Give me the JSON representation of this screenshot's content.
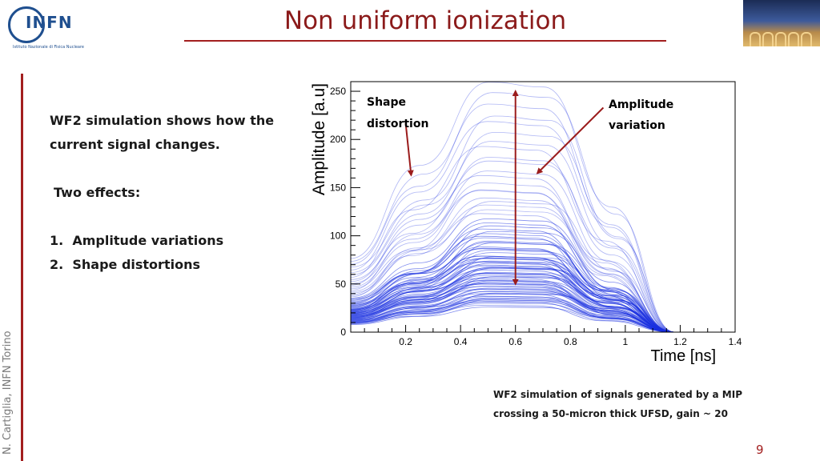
{
  "header": {
    "logo_text": "INFN",
    "logo_subtitle": "Istituto Nazionale di Fisica Nucleare",
    "title": "Non uniform ionization"
  },
  "side": {
    "author": "N. Cartiglia, INFN Torino"
  },
  "body": {
    "intro_line1": "WF2 simulation shows how the",
    "intro_line2": "current signal changes.",
    "effects_heading": "Two effects:",
    "items": [
      {
        "num": "1.",
        "text": "Amplitude variations"
      },
      {
        "num": "2.",
        "text": "Shape distortions"
      }
    ]
  },
  "annotations": {
    "shape_line1": "Shape",
    "shape_line2": "distortion",
    "amplitude_line1": "Amplitude",
    "amplitude_line2": "variation",
    "arrow_color": "#9b1c1c"
  },
  "chart_data": {
    "type": "line",
    "xlabel": "Time [ns]",
    "ylabel": "Amplitude [a.u]",
    "xlim": [
      0,
      1.4
    ],
    "ylim": [
      0,
      260
    ],
    "xticks": [
      0.2,
      0.4,
      0.6,
      0.8,
      1,
      1.2,
      1.4
    ],
    "xtick_labels": [
      "0.2",
      "0.4",
      "0.6",
      "0.8",
      "1",
      "1.2",
      "1.4"
    ],
    "yticks": [
      0,
      50,
      100,
      150,
      200,
      250
    ],
    "ytick_labels": [
      "0",
      "50",
      "100",
      "150",
      "200",
      "250"
    ],
    "series_color": "#1a2fe0",
    "grid": false,
    "waveform_shape": {
      "x": [
        0,
        0.25,
        0.5,
        0.7,
        0.95,
        1.18,
        1.4
      ],
      "y_fraction": [
        0.3,
        0.62,
        1.0,
        0.98,
        0.45,
        0.0,
        0.0
      ]
    },
    "peak_amplitudes": [
      26,
      28,
      30,
      31,
      32,
      33,
      34,
      35,
      36,
      37,
      38,
      39,
      40,
      41,
      42,
      43,
      44,
      45,
      46,
      47,
      48,
      49,
      50,
      51,
      52,
      53,
      54,
      55,
      56,
      57,
      58,
      59,
      60,
      61,
      62,
      63,
      64,
      65,
      66,
      67,
      68,
      69,
      70,
      71,
      72,
      73,
      74,
      75,
      76,
      77,
      78,
      79,
      80,
      82,
      84,
      86,
      88,
      90,
      92,
      94,
      96,
      98,
      100,
      103,
      106,
      109,
      112,
      115,
      118,
      122,
      126,
      130,
      135,
      140,
      145,
      150,
      156,
      162,
      168,
      175,
      182,
      190,
      198,
      206,
      215,
      225,
      235,
      245,
      255
    ],
    "arrows": [
      {
        "name": "amplitude-span",
        "from": [
          0.6,
          50
        ],
        "to": [
          0.6,
          250
        ]
      },
      {
        "name": "shape-pointer",
        "from": [
          0.2,
          217
        ],
        "to": [
          0.22,
          163
        ]
      },
      {
        "name": "amplitude-pointer",
        "from": [
          0.92,
          233
        ],
        "to": [
          0.68,
          165
        ]
      }
    ]
  },
  "caption": {
    "line1": "WF2 simulation of signals generated by a MIP",
    "line2": "crossing a 50-micron thick UFSD, gain ~ 20"
  },
  "page_number": "9"
}
